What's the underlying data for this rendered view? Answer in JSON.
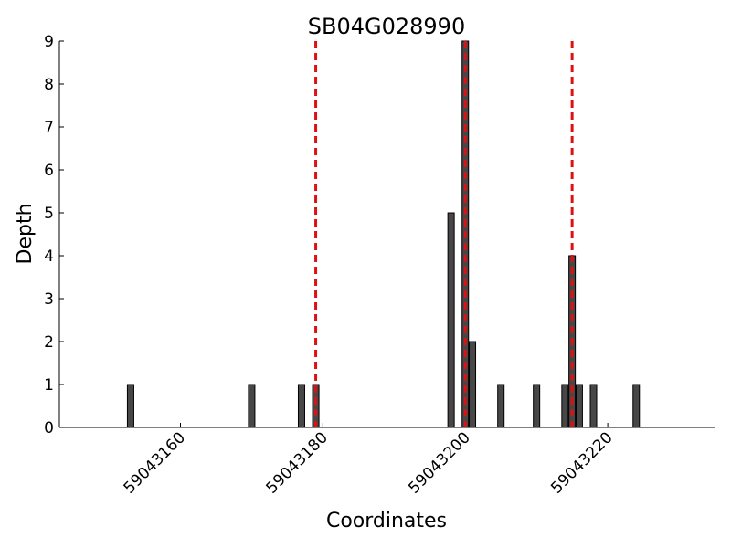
{
  "chart_data": {
    "type": "bar",
    "title": "SB04G028990",
    "xlabel": "Coordinates",
    "ylabel": "Depth",
    "xlim": [
      59043143,
      59043235
    ],
    "ylim": [
      0,
      9
    ],
    "xticks": [
      59043160,
      59043180,
      59043200,
      59043220
    ],
    "yticks": [
      0,
      1,
      2,
      3,
      4,
      5,
      6,
      7,
      8,
      9
    ],
    "series": [
      {
        "values": [
          {
            "x": 59043153,
            "y": 1
          },
          {
            "x": 59043170,
            "y": 1
          },
          {
            "x": 59043177,
            "y": 1
          },
          {
            "x": 59043179,
            "y": 1
          },
          {
            "x": 59043198,
            "y": 5
          },
          {
            "x": 59043200,
            "y": 9
          },
          {
            "x": 59043201,
            "y": 2
          },
          {
            "x": 59043205,
            "y": 1
          },
          {
            "x": 59043210,
            "y": 1
          },
          {
            "x": 59043214,
            "y": 1
          },
          {
            "x": 59043215,
            "y": 4
          },
          {
            "x": 59043216,
            "y": 1
          },
          {
            "x": 59043218,
            "y": 1
          },
          {
            "x": 59043224,
            "y": 1
          }
        ]
      }
    ],
    "reference_lines": [
      59043179,
      59043200,
      59043215
    ],
    "colors": {
      "bar_fill": "#474747",
      "bar_edge": "#000000",
      "reference_line": "#dd1111"
    },
    "grid": false,
    "legend": "none"
  }
}
